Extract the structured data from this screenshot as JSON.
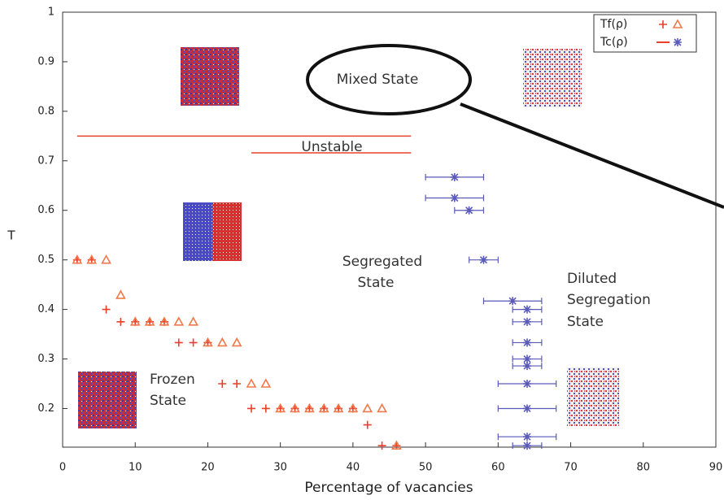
{
  "chart_data": {
    "type": "scatter",
    "x_label": "Percentage of vacancies",
    "y_label": "T",
    "xlim": [
      0,
      90
    ],
    "ylim": [
      0.122,
      1
    ],
    "xticks": [
      0,
      10,
      20,
      30,
      40,
      50,
      60,
      70,
      80,
      90
    ],
    "yticks": [
      0.2,
      0.3,
      0.4,
      0.5,
      0.6,
      0.7,
      0.8,
      0.9,
      1
    ],
    "legend_position": "upper right",
    "series": [
      {
        "name": "Tf(ρ)",
        "marker": "plus",
        "color": "#e8402a",
        "x": [
          2,
          4,
          6,
          8,
          10,
          12,
          14,
          16,
          18,
          20,
          22,
          24,
          26,
          28,
          30,
          32,
          34,
          36,
          38,
          40,
          42,
          44,
          46
        ],
        "values": [
          0.5,
          0.5,
          0.4,
          0.375,
          0.375,
          0.375,
          0.375,
          0.333,
          0.333,
          0.333,
          0.25,
          0.25,
          0.2,
          0.2,
          0.2,
          0.2,
          0.2,
          0.2,
          0.2,
          0.2,
          0.167,
          0.125,
          0.125
        ]
      },
      {
        "name": "Tf(ρ)",
        "marker": "triangle",
        "color": "#f0784a",
        "x": [
          2,
          4,
          6,
          8,
          10,
          12,
          14,
          16,
          18,
          20,
          22,
          24,
          26,
          28,
          30,
          32,
          34,
          36,
          38,
          40,
          42,
          44,
          46
        ],
        "values": [
          0.5,
          0.5,
          0.5,
          0.429,
          0.375,
          0.375,
          0.375,
          0.375,
          0.375,
          0.333,
          0.333,
          0.333,
          0.25,
          0.25,
          0.2,
          0.2,
          0.2,
          0.2,
          0.2,
          0.2,
          0.2,
          0.2,
          0.125
        ]
      },
      {
        "name": "Tc(ρ)",
        "marker": "line",
        "color": "#e8402a",
        "x": [
          2,
          48,
          null,
          26,
          48
        ],
        "values": [
          0.75,
          0.75,
          null,
          0.716,
          0.716
        ]
      },
      {
        "name": "Tc(ρ)",
        "marker": "star",
        "color": "#5a5ab8",
        "x": [
          54,
          54,
          56,
          58,
          62,
          64,
          64,
          64,
          64,
          64,
          64,
          64,
          64,
          64
        ],
        "x_error": [
          4,
          4,
          2,
          2,
          4,
          2,
          2,
          2,
          2,
          2,
          4,
          4,
          4,
          2
        ],
        "values": [
          0.667,
          0.625,
          0.6,
          0.5,
          0.417,
          0.4,
          0.375,
          0.333,
          0.3,
          0.286,
          0.25,
          0.2,
          0.143,
          0.125
        ]
      }
    ],
    "annotations": {
      "mixed": "Mixed State",
      "unstable": "Unstable",
      "segregated": [
        "Segregated",
        "State"
      ],
      "diluted": [
        "Diluted",
        "Segregation",
        "State"
      ],
      "frozen": [
        "Frozen",
        "State"
      ]
    }
  }
}
